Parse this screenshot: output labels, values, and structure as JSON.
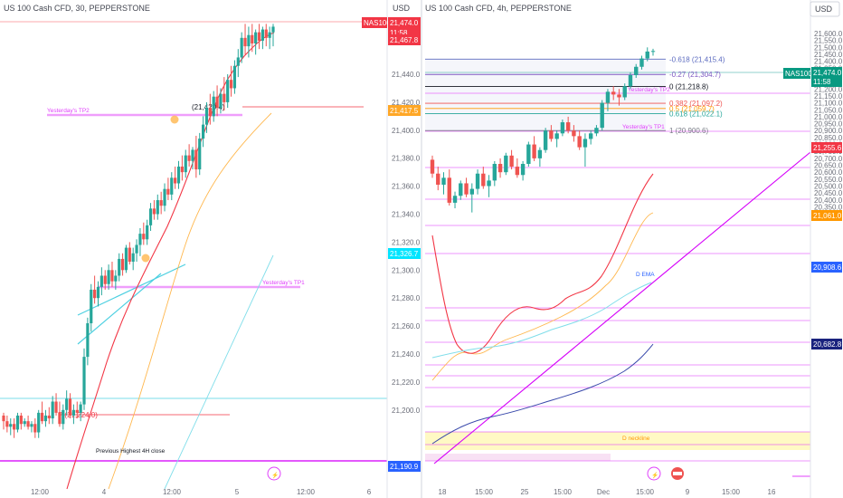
{
  "left": {
    "title": "US 100 Cash CFD, 30, PEPPERSTONE",
    "currency": "USD",
    "price_ticks": [
      "21,440.0",
      "21,420.0",
      "21,400.0",
      "21,380.0",
      "21,360.0",
      "21,340.0",
      "21,320.0",
      "21,300.0",
      "21,280.0",
      "21,260.0",
      "21,240.0",
      "21,220.0",
      "21,200.0"
    ],
    "time_ticks": [
      "12:00",
      "4",
      "12:00",
      "5",
      "12:00",
      "6"
    ],
    "symbol_badge": "NAS100",
    "badges": {
      "last_price": "21,474.0",
      "countdown": "11:58",
      "high": "21,467.8",
      "level_orange": "21,417.5",
      "level_cyan": "21,326.7",
      "level_blue": "21,190.9"
    },
    "labels": {
      "tp2": "Yesterday's TP2",
      "tp1": "Yesterday's TP1",
      "p": "P (21,224.0)",
      "prev_high": "Previous Highest 4H close",
      "tp2_value": "(21,420.4)"
    },
    "colors": {
      "up": "#26a69a",
      "down": "#ef5350",
      "magenta": "#e040fb",
      "cyan": "#4dd0e1",
      "ema_red": "#f23645",
      "ema_orange": "#ffb74d",
      "sky": "#80deea"
    },
    "candles": [
      [
        21196,
        21198,
        21186,
        21192
      ],
      [
        21192,
        21196,
        21184,
        21188
      ],
      [
        21188,
        21194,
        21182,
        21190
      ],
      [
        21190,
        21194,
        21180,
        21186
      ],
      [
        21186,
        21198,
        21184,
        21196
      ],
      [
        21196,
        21198,
        21186,
        21190
      ],
      [
        21190,
        21194,
        21188,
        21192
      ],
      [
        21192,
        21196,
        21186,
        21188
      ],
      [
        21188,
        21192,
        21184,
        21190
      ],
      [
        21190,
        21194,
        21180,
        21184
      ],
      [
        21184,
        21200,
        21180,
        21198
      ],
      [
        21198,
        21206,
        21190,
        21192
      ],
      [
        21192,
        21200,
        21188,
        21196
      ],
      [
        21196,
        21202,
        21190,
        21194
      ],
      [
        21194,
        21210,
        21190,
        21206
      ],
      [
        21206,
        21212,
        21196,
        21198
      ],
      [
        21198,
        21206,
        21188,
        21190
      ],
      [
        21190,
        21204,
        21186,
        21200
      ],
      [
        21200,
        21214,
        21196,
        21208
      ],
      [
        21208,
        21212,
        21194,
        21196
      ],
      [
        21196,
        21204,
        21190,
        21200
      ],
      [
        21200,
        21206,
        21194,
        21198
      ],
      [
        21198,
        21206,
        21192,
        21204
      ],
      [
        21204,
        21244,
        21200,
        21238
      ],
      [
        21238,
        21266,
        21232,
        21262
      ],
      [
        21262,
        21290,
        21256,
        21286
      ],
      [
        21286,
        21296,
        21276,
        21280
      ],
      [
        21280,
        21292,
        21274,
        21288
      ],
      [
        21288,
        21302,
        21282,
        21296
      ],
      [
        21296,
        21300,
        21286,
        21290
      ],
      [
        21290,
        21304,
        21286,
        21300
      ],
      [
        21300,
        21306,
        21288,
        21292
      ],
      [
        21292,
        21300,
        21286,
        21296
      ],
      [
        21296,
        21312,
        21292,
        21308
      ],
      [
        21308,
        21312,
        21296,
        21300
      ],
      [
        21300,
        21318,
        21298,
        21316
      ],
      [
        21316,
        21320,
        21304,
        21306
      ],
      [
        21306,
        21316,
        21300,
        21312
      ],
      [
        21312,
        21322,
        21306,
        21318
      ],
      [
        21318,
        21330,
        21310,
        21326
      ],
      [
        21326,
        21334,
        21318,
        21322
      ],
      [
        21322,
        21336,
        21318,
        21332
      ],
      [
        21332,
        21348,
        21328,
        21344
      ],
      [
        21344,
        21350,
        21336,
        21340
      ],
      [
        21340,
        21354,
        21336,
        21350
      ],
      [
        21350,
        21356,
        21340,
        21346
      ],
      [
        21346,
        21362,
        21342,
        21358
      ],
      [
        21358,
        21366,
        21350,
        21354
      ],
      [
        21354,
        21370,
        21350,
        21366
      ],
      [
        21366,
        21374,
        21358,
        21362
      ],
      [
        21362,
        21378,
        21358,
        21374
      ],
      [
        21374,
        21382,
        21364,
        21370
      ],
      [
        21370,
        21386,
        21366,
        21382
      ],
      [
        21382,
        21390,
        21374,
        21378
      ],
      [
        21378,
        21388,
        21372,
        21386
      ],
      [
        21386,
        21396,
        21366,
        21372
      ],
      [
        21372,
        21398,
        21368,
        21394
      ],
      [
        21394,
        21410,
        21388,
        21404
      ],
      [
        21404,
        21420,
        21398,
        21416
      ],
      [
        21416,
        21426,
        21404,
        21410
      ],
      [
        21410,
        21428,
        21406,
        21424
      ],
      [
        21424,
        21432,
        21410,
        21416
      ],
      [
        21416,
        21430,
        21412,
        21426
      ],
      [
        21426,
        21438,
        21414,
        21420
      ],
      [
        21420,
        21440,
        21416,
        21436
      ],
      [
        21436,
        21446,
        21424,
        21430
      ],
      [
        21430,
        21450,
        21426,
        21446
      ],
      [
        21446,
        21458,
        21438,
        21452
      ],
      [
        21452,
        21470,
        21448,
        21466
      ],
      [
        21466,
        21476,
        21454,
        21460
      ],
      [
        21460,
        21474,
        21452,
        21468
      ],
      [
        21468,
        21476,
        21456,
        21462
      ],
      [
        21462,
        21472,
        21454,
        21470
      ],
      [
        21470,
        21476,
        21458,
        21464
      ],
      [
        21464,
        21474,
        21458,
        21472
      ],
      [
        21472,
        21476,
        21460,
        21466
      ],
      [
        21466,
        21474,
        21458,
        21470
      ],
      [
        21470,
        21476,
        21460,
        21474
      ]
    ]
  },
  "right": {
    "title": "US 100 Cash CFD, 4h, PEPPERSTONE",
    "currency": "USD",
    "price_ticks": [
      "21,600.0",
      "21,550.0",
      "21,500.0",
      "21,450.0",
      "21,400.0",
      "21,350.0",
      "21,300.0",
      "21,250.0",
      "21,200.0",
      "21,150.0",
      "21,100.0",
      "21,050.0",
      "21,000.0",
      "20,950.0",
      "20,900.0",
      "20,850.0",
      "20,800.0",
      "20,750.0",
      "20,700.0",
      "20,650.0",
      "20,600.0",
      "20,550.0",
      "20,500.0",
      "20,450.0",
      "20,400.0",
      "20,350.0",
      "20,300.0"
    ],
    "time_ticks": [
      "18",
      "15:00",
      "25",
      "15:00",
      "Dec",
      "15:00",
      "9",
      "15:00",
      "16"
    ],
    "symbol_badge": "NAS100",
    "badges": {
      "last_price": "21,474.0",
      "countdown": "11:58",
      "level_red": "21,255.6",
      "level_orange": "21,061.0",
      "level_blue1": "20,908.6",
      "level_blue2": "20,682.8"
    },
    "fib": [
      {
        "label": "-0.618 (21,415.4)",
        "price": 21415.4,
        "color": "#5c6bc0"
      },
      {
        "label": "-0.27 (21,304.7)",
        "price": 21304.7,
        "color": "#7e57c2"
      },
      {
        "label": "0 (21,218.8)",
        "price": 21218.8,
        "color": "#131722"
      },
      {
        "label": "0.382 (21,097.2)",
        "price": 21097.2,
        "color": "#ef5350"
      },
      {
        "label": "0.5 (21,059.7)",
        "price": 21059.7,
        "color": "#ff9800"
      },
      {
        "label": "0.618 (21,022.1)",
        "price": 21022.1,
        "color": "#26a69a"
      },
      {
        "label": "1 (20,900.6)",
        "price": 20900.6,
        "color": "#787b86"
      }
    ],
    "labels": {
      "tp2": "Yesterday's TP2",
      "tp1": "Yesterday's TP1",
      "ema": "D EMA",
      "neckline": "D neckline"
    },
    "candles": [
      [
        20690,
        20720,
        20560,
        20590
      ],
      [
        20590,
        20640,
        20470,
        20510
      ],
      [
        20510,
        20600,
        20440,
        20560
      ],
      [
        20560,
        20620,
        20360,
        20380
      ],
      [
        20380,
        20460,
        20340,
        20430
      ],
      [
        20430,
        20540,
        20400,
        20520
      ],
      [
        20520,
        20560,
        20420,
        20440
      ],
      [
        20440,
        20520,
        20310,
        20480
      ],
      [
        20480,
        20620,
        20440,
        20590
      ],
      [
        20590,
        20640,
        20480,
        20500
      ],
      [
        20500,
        20580,
        20420,
        20540
      ],
      [
        20540,
        20680,
        20500,
        20660
      ],
      [
        20660,
        20700,
        20560,
        20600
      ],
      [
        20600,
        20740,
        20580,
        20720
      ],
      [
        20720,
        20760,
        20620,
        20640
      ],
      [
        20640,
        20700,
        20560,
        20580
      ],
      [
        20580,
        20680,
        20540,
        20660
      ],
      [
        20660,
        20820,
        20640,
        20800
      ],
      [
        20800,
        20860,
        20680,
        20700
      ],
      [
        20700,
        20780,
        20640,
        20760
      ],
      [
        20760,
        20920,
        20740,
        20900
      ],
      [
        20900,
        20940,
        20820,
        20840
      ],
      [
        20840,
        20900,
        20780,
        20880
      ],
      [
        20880,
        20980,
        20860,
        20960
      ],
      [
        20960,
        21000,
        20880,
        20900
      ],
      [
        20900,
        20940,
        20820,
        20860
      ],
      [
        20860,
        20900,
        20760,
        20780
      ],
      [
        20780,
        20880,
        20640,
        20840
      ],
      [
        20840,
        20900,
        20800,
        20880
      ],
      [
        20880,
        20940,
        20860,
        20920
      ],
      [
        20920,
        21120,
        20900,
        21100
      ],
      [
        21100,
        21200,
        21040,
        21180
      ],
      [
        21180,
        21220,
        21120,
        21160
      ],
      [
        21160,
        21200,
        21080,
        21140
      ],
      [
        21140,
        21240,
        21120,
        21220
      ],
      [
        21220,
        21320,
        21200,
        21300
      ],
      [
        21300,
        21380,
        21280,
        21360
      ],
      [
        21360,
        21440,
        21340,
        21420
      ],
      [
        21420,
        21500,
        21400,
        21470
      ],
      [
        21470,
        21490,
        21440,
        21474
      ]
    ]
  }
}
